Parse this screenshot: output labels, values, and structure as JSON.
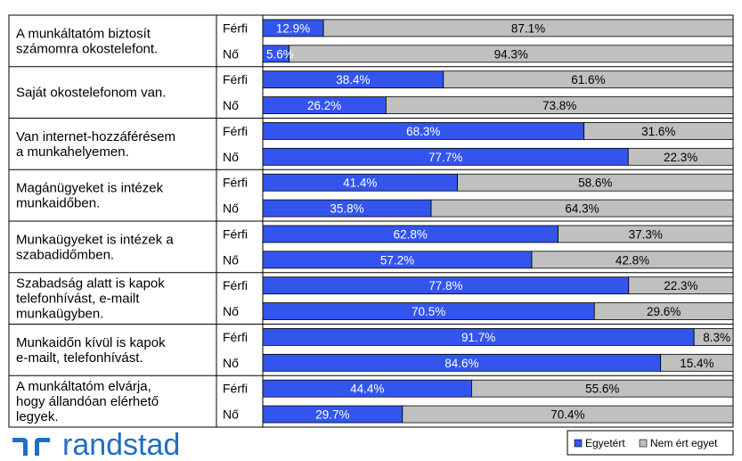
{
  "chart_data": {
    "type": "bar",
    "orientation": "horizontal",
    "stacked": true,
    "xlim": [
      0,
      100
    ],
    "legend_position": "bottom-right",
    "groups": [
      "Férfi",
      "Nő"
    ],
    "colors": {
      "agree": "#3355ee",
      "disagree": "#c0c0c0"
    },
    "series": [
      {
        "name": "Egyetért"
      },
      {
        "name": "Nem ért egyet"
      }
    ],
    "questions": [
      {
        "label": [
          "A munkáltatóm biztosít",
          "számomra okostelefont."
        ],
        "rows": [
          {
            "agree": 12.9,
            "disagree": 87.1,
            "agree_label": "12.9%",
            "disagree_label": "87.1%"
          },
          {
            "agree": 5.6,
            "disagree": 94.3,
            "agree_label": "5.6%",
            "disagree_label": "94.3%"
          }
        ]
      },
      {
        "label": [
          "Saját okostelefonom van."
        ],
        "rows": [
          {
            "agree": 38.4,
            "disagree": 61.6,
            "agree_label": "38.4%",
            "disagree_label": "61.6%"
          },
          {
            "agree": 26.2,
            "disagree": 73.8,
            "agree_label": "26.2%",
            "disagree_label": "73.8%"
          }
        ]
      },
      {
        "label": [
          "Van internet-hozzáférésem",
          "a munkahelyemen."
        ],
        "rows": [
          {
            "agree": 68.3,
            "disagree": 31.6,
            "agree_label": "68.3%",
            "disagree_label": "31.6%"
          },
          {
            "agree": 77.7,
            "disagree": 22.3,
            "agree_label": "77.7%",
            "disagree_label": "22.3%"
          }
        ]
      },
      {
        "label": [
          "Magánügyeket is intézek",
          "munkaidőben."
        ],
        "rows": [
          {
            "agree": 41.4,
            "disagree": 58.6,
            "agree_label": "41.4%",
            "disagree_label": "58.6%"
          },
          {
            "agree": 35.8,
            "disagree": 64.3,
            "agree_label": "35.8%",
            "disagree_label": "64.3%"
          }
        ]
      },
      {
        "label": [
          "Munkaügyeket is intézek a",
          "szabadidőmben."
        ],
        "rows": [
          {
            "agree": 62.8,
            "disagree": 37.3,
            "agree_label": "62.8%",
            "disagree_label": "37.3%"
          },
          {
            "agree": 57.2,
            "disagree": 42.8,
            "agree_label": "57.2%",
            "disagree_label": "42.8%"
          }
        ]
      },
      {
        "label": [
          "Szabadság alatt is kapok",
          "telefonhívást, e-mailt",
          "munkaügyben."
        ],
        "rows": [
          {
            "agree": 77.8,
            "disagree": 22.3,
            "agree_label": "77.8%",
            "disagree_label": "22.3%"
          },
          {
            "agree": 70.5,
            "disagree": 29.6,
            "agree_label": "70.5%",
            "disagree_label": "29.6%"
          }
        ]
      },
      {
        "label": [
          "Munkaidőn kívül is kapok",
          "e-mailt, telefonhívást."
        ],
        "rows": [
          {
            "agree": 91.7,
            "disagree": 8.3,
            "agree_label": "91.7%",
            "disagree_label": "8.3%"
          },
          {
            "agree": 84.6,
            "disagree": 15.4,
            "agree_label": "84.6%",
            "disagree_label": "15.4%"
          }
        ]
      },
      {
        "label": [
          "A munkáltatóm elvárja,",
          "hogy állandóan elérhető",
          "legyek."
        ],
        "rows": [
          {
            "agree": 44.4,
            "disagree": 55.6,
            "agree_label": "44.4%",
            "disagree_label": "55.6%"
          },
          {
            "agree": 29.7,
            "disagree": 70.4,
            "agree_label": "29.7%",
            "disagree_label": "70.4%"
          }
        ]
      }
    ]
  },
  "logo": {
    "text": "randstad",
    "color": "#1f6dc7"
  }
}
